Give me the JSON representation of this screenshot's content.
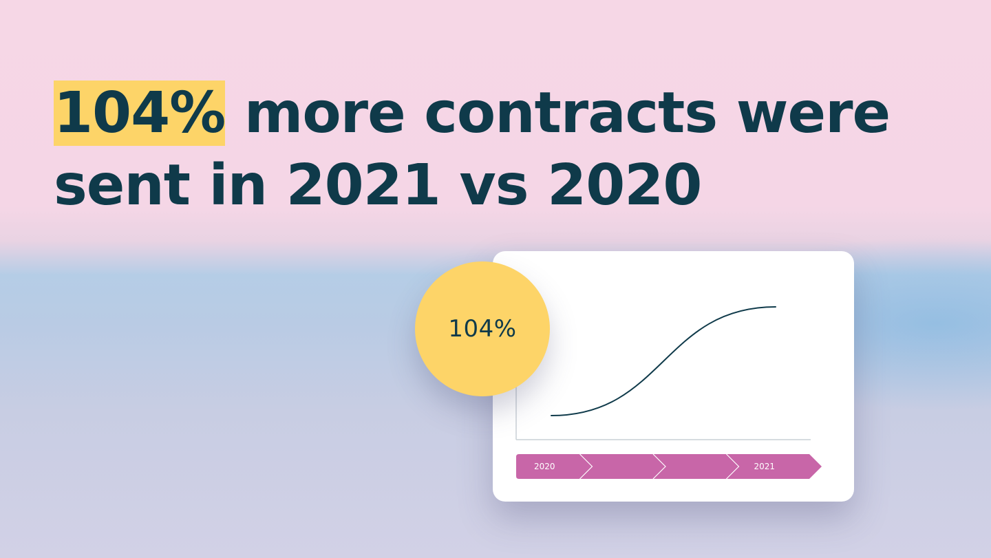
{
  "headline": {
    "highlight": "104%",
    "rest_line1": " more contracts were",
    "line2": "sent in 2021 vs 2020"
  },
  "badge": {
    "value": "104%"
  },
  "colors": {
    "text": "#0f3a4a",
    "highlight": "#fdd468",
    "timeline": "#c866a8",
    "curve": "#0f3a4a",
    "axis": "#c9d0d6"
  },
  "chart_data": {
    "type": "line",
    "x": [
      0,
      1
    ],
    "series": [
      {
        "values": [
          0,
          1
        ]
      }
    ],
    "curve_shape": "s-curve",
    "timeline": [
      "2020",
      "",
      "",
      "2021"
    ]
  }
}
